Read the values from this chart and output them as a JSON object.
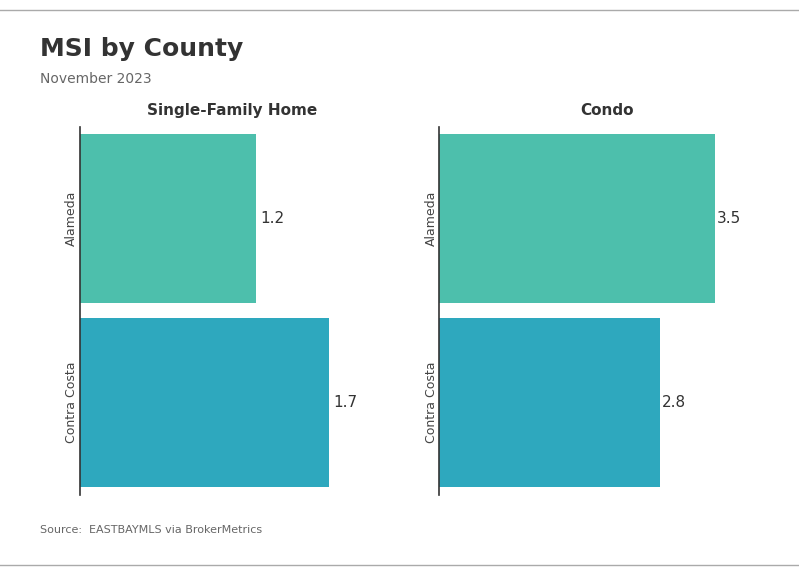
{
  "title": "MSI by County",
  "subtitle": "November 2023",
  "source": "Source:  EASTBAYMLS via BrokerMetrics",
  "background_color": "#ffffff",
  "panels": [
    {
      "label": "Single-Family Home",
      "categories": [
        "Alameda",
        "Contra Costa"
      ],
      "values": [
        1.2,
        1.7
      ],
      "colors": [
        "#4dbfac",
        "#2ea8be"
      ]
    },
    {
      "label": "Condo",
      "categories": [
        "Alameda",
        "Contra Costa"
      ],
      "values": [
        3.5,
        2.8
      ],
      "colors": [
        "#4dbfac",
        "#2ea8be"
      ]
    }
  ],
  "title_fontsize": 18,
  "subtitle_fontsize": 10,
  "panel_title_fontsize": 11,
  "value_fontsize": 11,
  "category_fontsize": 9,
  "source_fontsize": 8,
  "bar_height": 0.92
}
